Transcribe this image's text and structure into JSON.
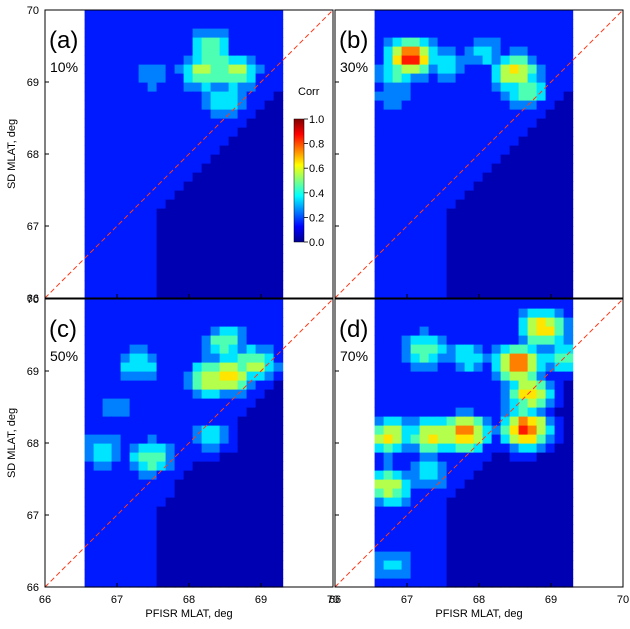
{
  "chart_data": {
    "type": "heatmap",
    "x_axis_label": "PFISR MLAT, deg",
    "y_axis_label": "SD MLAT, deg",
    "xlim": [
      66,
      70
    ],
    "ylim": [
      66,
      70
    ],
    "x_ticks": [
      "66",
      "67",
      "68",
      "69",
      "70"
    ],
    "y_ticks": [
      "66",
      "67",
      "68",
      "69",
      "70"
    ],
    "data_x_range": [
      66.55,
      69.3
    ],
    "colorbar": {
      "label": "Corr",
      "range": [
        0.0,
        1.0
      ],
      "ticks": [
        "0.0",
        "0.2",
        "0.4",
        "0.6",
        "0.8",
        "1.0"
      ]
    },
    "reference_line": "y = x (dashed red)",
    "panels": [
      {
        "id": "(a)",
        "percent": "10%",
        "hotspots": [
          {
            "x": 68.35,
            "y": 69.25,
            "corr": 0.52
          },
          {
            "x": 68.2,
            "y": 69.15,
            "corr": 0.55
          },
          {
            "x": 68.65,
            "y": 69.15,
            "corr": 0.55
          },
          {
            "x": 68.3,
            "y": 69.5,
            "corr": 0.45
          },
          {
            "x": 67.5,
            "y": 69.1,
            "corr": 0.3
          },
          {
            "x": 68.5,
            "y": 68.75,
            "corr": 0.38
          },
          {
            "x": 67.0,
            "y": 68.2,
            "corr": 0.18
          },
          {
            "x": 67.0,
            "y": 66.8,
            "corr": 0.15
          }
        ]
      },
      {
        "id": "(b)",
        "percent": "30%",
        "hotspots": [
          {
            "x": 67.05,
            "y": 69.35,
            "corr": 0.85
          },
          {
            "x": 66.85,
            "y": 69.1,
            "corr": 0.42
          },
          {
            "x": 68.5,
            "y": 69.15,
            "corr": 0.65
          },
          {
            "x": 68.65,
            "y": 68.9,
            "corr": 0.5
          },
          {
            "x": 67.6,
            "y": 69.25,
            "corr": 0.35
          },
          {
            "x": 68.1,
            "y": 69.4,
            "corr": 0.35
          },
          {
            "x": 66.8,
            "y": 68.8,
            "corr": 0.3
          },
          {
            "x": 67.2,
            "y": 68.1,
            "corr": 0.18
          },
          {
            "x": 67.1,
            "y": 67.2,
            "corr": 0.15
          }
        ]
      },
      {
        "id": "(c)",
        "percent": "50%",
        "hotspots": [
          {
            "x": 68.55,
            "y": 68.95,
            "corr": 0.72
          },
          {
            "x": 68.3,
            "y": 68.9,
            "corr": 0.6
          },
          {
            "x": 68.9,
            "y": 69.1,
            "corr": 0.55
          },
          {
            "x": 68.5,
            "y": 69.4,
            "corr": 0.48
          },
          {
            "x": 67.3,
            "y": 69.1,
            "corr": 0.42
          },
          {
            "x": 67.45,
            "y": 67.8,
            "corr": 0.5
          },
          {
            "x": 66.8,
            "y": 67.9,
            "corr": 0.38
          },
          {
            "x": 68.3,
            "y": 68.1,
            "corr": 0.35
          },
          {
            "x": 67.0,
            "y": 68.5,
            "corr": 0.25
          },
          {
            "x": 67.5,
            "y": 67.3,
            "corr": 0.18
          }
        ]
      },
      {
        "id": "(d)",
        "percent": "70%",
        "hotspots": [
          {
            "x": 68.55,
            "y": 69.1,
            "corr": 0.8
          },
          {
            "x": 68.65,
            "y": 68.2,
            "corr": 0.85
          },
          {
            "x": 68.9,
            "y": 69.6,
            "corr": 0.7
          },
          {
            "x": 68.7,
            "y": 68.7,
            "corr": 0.65
          },
          {
            "x": 67.8,
            "y": 68.15,
            "corr": 0.75
          },
          {
            "x": 67.35,
            "y": 68.1,
            "corr": 0.65
          },
          {
            "x": 66.75,
            "y": 68.1,
            "corr": 0.62
          },
          {
            "x": 66.75,
            "y": 67.4,
            "corr": 0.6
          },
          {
            "x": 67.25,
            "y": 69.3,
            "corr": 0.5
          },
          {
            "x": 67.85,
            "y": 69.2,
            "corr": 0.4
          },
          {
            "x": 67.3,
            "y": 67.6,
            "corr": 0.38
          },
          {
            "x": 66.8,
            "y": 66.3,
            "corr": 0.35
          },
          {
            "x": 69.2,
            "y": 69.2,
            "corr": 0.45
          }
        ]
      }
    ]
  }
}
